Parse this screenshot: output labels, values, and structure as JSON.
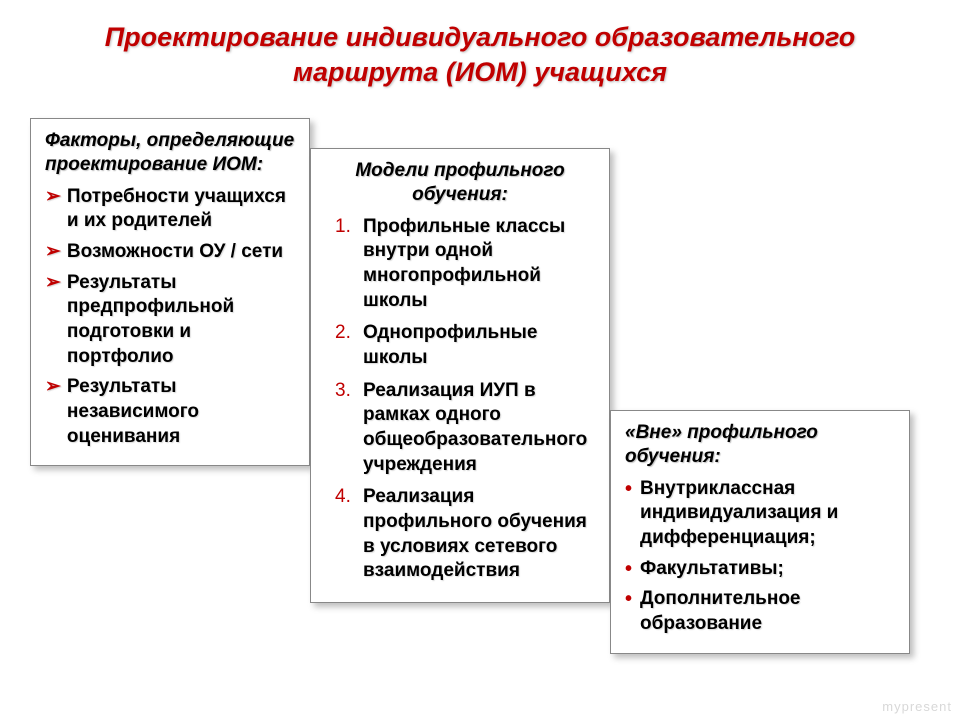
{
  "title": "Проектирование индивидуального образовательного маршрута (ИОМ) учащихся",
  "colors": {
    "title_color": "#c00000",
    "marker_color": "#c00000",
    "text_color": "#000000",
    "background": "#ffffff",
    "box_border": "#888888",
    "watermark": "#d8d8d8"
  },
  "typography": {
    "title_fontsize": 27,
    "heading_fontsize": 19,
    "body_fontsize": 19,
    "font_family": "Arial"
  },
  "boxes": {
    "left": {
      "heading": "Факторы, определяющие проектирование ИОМ:",
      "marker": "chevron",
      "items": [
        "Потребности учащихся и их родителей",
        "Возможности ОУ / сети",
        "Результаты предпрофильной подготовки и портфолио",
        "Результаты независимого оценивания"
      ]
    },
    "center": {
      "heading": "Модели профильного обучения:",
      "marker": "numbered",
      "items": [
        "Профильные классы внутри одной многопрофильной школы",
        "Однопрофильные школы",
        "Реализация ИУП в рамках одного общеобразовательного учреждения",
        "Реализация профильного обучения в условиях сетевого взаимодействия"
      ]
    },
    "right": {
      "heading": "«Вне» профильного обучения:",
      "marker": "dot",
      "items": [
        "Внутриклассная индивидуализация и дифференциация;",
        "Факультативы;",
        "Дополнительное образование"
      ]
    }
  },
  "numbers": {
    "n1": "1.",
    "n2": "2.",
    "n3": "3.",
    "n4": "4."
  },
  "markers": {
    "chevron": "➢",
    "dot": "•"
  },
  "watermark": "mypresent"
}
